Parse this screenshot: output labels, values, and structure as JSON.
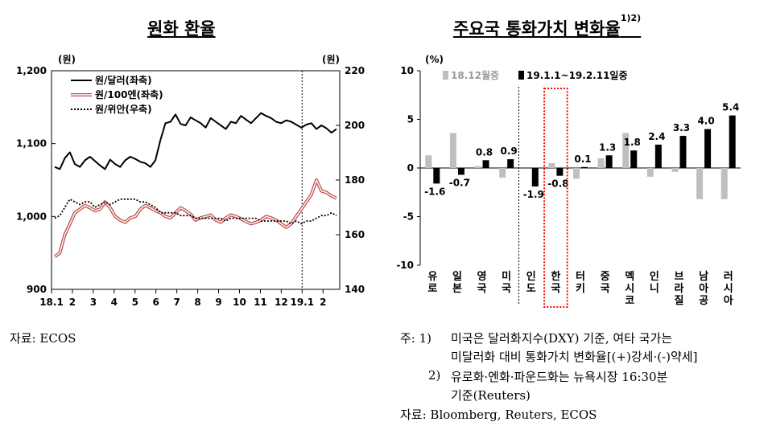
{
  "left_panel": {
    "title": "원화 환율",
    "source": "자료: ECOS"
  },
  "right_panel": {
    "title": "주요국 통화가치 변화율",
    "title_sup": "1)2)",
    "notes": [
      {
        "marker": "주: 1)",
        "text": "미국은 달러화지수(DXY) 기준, 여타 국가는"
      },
      {
        "marker": "",
        "text": "미달러화 대비 통화가치 변화율[(+)강세·(-)약세]"
      },
      {
        "marker": "2)",
        "text": "유로화·엔화·파운드화는 뉴욕시장 16:30분"
      },
      {
        "marker": "",
        "text": "기준(Reuters)"
      }
    ],
    "source": "자료: Bloomberg, Reuters, ECOS"
  },
  "chart_data": [
    {
      "type": "line",
      "left_unit": "(원)",
      "right_unit": "(원)",
      "yleft_ticks": [
        "900",
        "1,000",
        "1,100",
        "1,200"
      ],
      "yright_ticks": [
        "140",
        "160",
        "180",
        "200",
        "220"
      ],
      "ylim_left": [
        900,
        1200
      ],
      "ylim_right": [
        140,
        220
      ],
      "x_ticks": [
        "18.1",
        "2",
        "3",
        "4",
        "5",
        "6",
        "7",
        "8",
        "9",
        "10",
        "11",
        "12",
        "19.1",
        "2"
      ],
      "series": [
        {
          "name": "원/달러(좌축)",
          "axis": "left",
          "color": "#000000",
          "style": "solid",
          "values": [
            1068,
            1065,
            1080,
            1088,
            1072,
            1068,
            1077,
            1082,
            1076,
            1070,
            1065,
            1078,
            1072,
            1068,
            1077,
            1082,
            1079,
            1075,
            1073,
            1068,
            1077,
            1105,
            1128,
            1130,
            1140,
            1127,
            1125,
            1136,
            1132,
            1128,
            1122,
            1135,
            1130,
            1125,
            1120,
            1130,
            1128,
            1138,
            1133,
            1128,
            1135,
            1142,
            1138,
            1135,
            1130,
            1128,
            1132,
            1130,
            1126,
            1122,
            1126,
            1128,
            1120,
            1125,
            1121,
            1115,
            1120
          ]
        },
        {
          "name": "원/100엔(좌축)",
          "axis": "left",
          "color": "#c0504d",
          "style": "double",
          "values": [
            945,
            950,
            975,
            990,
            1005,
            1010,
            1015,
            1012,
            1008,
            1010,
            1020,
            1012,
            1000,
            995,
            992,
            998,
            1000,
            1010,
            1015,
            1012,
            1008,
            1005,
            1000,
            998,
            1005,
            1012,
            1008,
            1003,
            995,
            998,
            1000,
            1002,
            995,
            992,
            998,
            1002,
            1000,
            997,
            993,
            990,
            992,
            995,
            1000,
            998,
            995,
            990,
            985,
            990,
            1000,
            1010,
            1020,
            1030,
            1050,
            1035,
            1033,
            1028,
            1025
          ]
        },
        {
          "name": "원/위안(우축)",
          "axis": "right",
          "color": "#000000",
          "style": "dotted",
          "values": [
            166,
            167,
            170,
            173,
            172,
            171,
            172,
            172,
            170,
            171,
            172,
            171,
            172,
            173,
            173,
            173,
            173,
            172,
            172,
            171,
            170,
            168,
            168,
            168,
            168,
            167,
            167,
            167,
            166,
            166,
            166,
            166,
            166,
            166,
            165,
            166,
            166,
            166,
            166,
            166,
            166,
            165,
            165,
            165,
            165,
            165,
            165,
            164,
            165,
            164,
            165,
            165,
            166,
            167,
            167,
            168,
            167
          ]
        }
      ],
      "vline_index": 12,
      "legend_placement": "top-left"
    },
    {
      "type": "bar",
      "ylabel": "(%)",
      "ylim": [
        -10,
        10
      ],
      "y_ticks": [
        "-10",
        "-5",
        "0",
        "5",
        "10"
      ],
      "categories": [
        "유로",
        "일본",
        "영국",
        "미국",
        "인도",
        "한국",
        "터키",
        "중국",
        "멕시코",
        "인니",
        "브라질",
        "남아공",
        "러시아"
      ],
      "series": [
        {
          "name": "18.12월중",
          "color": "#bfbfbf",
          "values": [
            1.3,
            3.6,
            0.2,
            -1.0,
            0.0,
            0.5,
            -1.1,
            1.0,
            3.6,
            -0.9,
            -0.4,
            -3.2,
            -3.2
          ]
        },
        {
          "name": "19.1.1~19.2.11일중",
          "color": "#000000",
          "values": [
            -1.6,
            -0.7,
            0.8,
            0.9,
            -1.9,
            -0.8,
            0.1,
            1.3,
            1.8,
            2.4,
            3.3,
            4.0,
            5.4
          ]
        }
      ],
      "labels": [
        "-1.6",
        "-0.7",
        "0.8",
        "0.9",
        "-1.9",
        "-0.8",
        "0.1",
        "1.3",
        "1.8",
        "2.4",
        "3.3",
        "4.0",
        "5.4"
      ],
      "highlight_category": "한국",
      "highlight_color": "#ff0000",
      "separator_after": "미국",
      "legend_placement": "top"
    }
  ]
}
